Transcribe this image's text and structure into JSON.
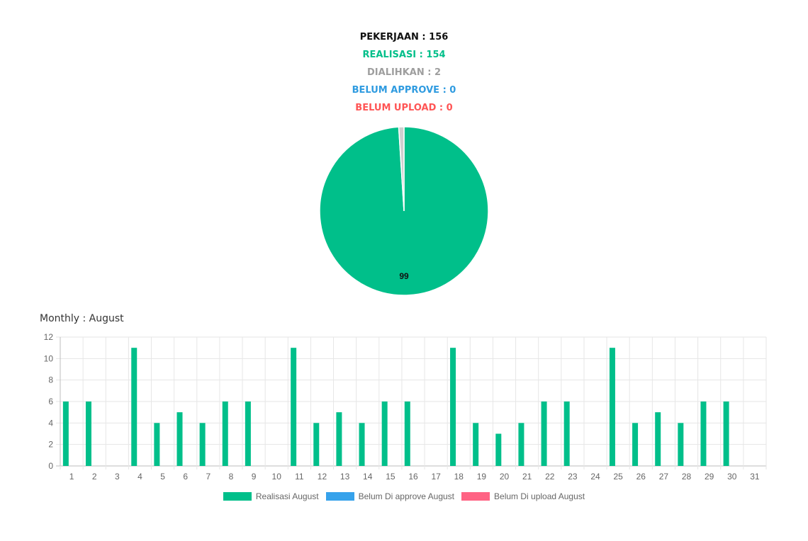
{
  "summary": {
    "total": "PEKERJAAN : 156",
    "realisasi": "REALISASI : 154",
    "dialihkan": "DIALIHKAN : 2",
    "belum_approve": "BELUM APPROVE : 0",
    "belum_upload": "BELUM UPLOAD : 0"
  },
  "monthly_title": "Monthly : August",
  "legend": [
    {
      "label": "Realisasi August",
      "color": "#00bf8a"
    },
    {
      "label": "Belum Di approve August",
      "color": "#36a2eb"
    },
    {
      "label": "Belum Di upload August",
      "color": "#ff6384"
    }
  ],
  "chart_data": [
    {
      "type": "pie",
      "slices": [
        {
          "value": 99,
          "label": "99",
          "color": "#00bf8a"
        },
        {
          "value": 1,
          "color": "#cfcfcf"
        }
      ]
    },
    {
      "type": "bar",
      "categories": [
        "1",
        "2",
        "3",
        "4",
        "5",
        "6",
        "7",
        "8",
        "9",
        "10",
        "11",
        "12",
        "13",
        "14",
        "15",
        "16",
        "17",
        "18",
        "19",
        "20",
        "21",
        "22",
        "23",
        "24",
        "25",
        "26",
        "27",
        "28",
        "29",
        "30",
        "31"
      ],
      "series": [
        {
          "name": "Realisasi August",
          "color": "#00bf8a",
          "values": [
            6,
            6,
            0,
            11,
            4,
            5,
            4,
            6,
            6,
            0,
            11,
            4,
            5,
            4,
            6,
            6,
            0,
            11,
            4,
            3,
            4,
            6,
            6,
            0,
            11,
            4,
            5,
            4,
            6,
            6,
            0
          ]
        },
        {
          "name": "Belum Di approve August",
          "color": "#36a2eb",
          "values": [
            0,
            0,
            0,
            0,
            0,
            0,
            0,
            0,
            0,
            0,
            0,
            0,
            0,
            0,
            0,
            0,
            0,
            0,
            0,
            0,
            0,
            0,
            0,
            0,
            0,
            0,
            0,
            0,
            0,
            0,
            0
          ]
        },
        {
          "name": "Belum Di upload August",
          "color": "#ff6384",
          "values": [
            0,
            0,
            0,
            0,
            0,
            0,
            0,
            0,
            0,
            0,
            0,
            0,
            0,
            0,
            0,
            0,
            0,
            0,
            0,
            0,
            0,
            0,
            0,
            0,
            0,
            0,
            0,
            0,
            0,
            0,
            0
          ]
        }
      ],
      "y_ticks": [
        "0",
        "2",
        "4",
        "6",
        "8",
        "10",
        "12"
      ],
      "ylim": [
        0,
        12
      ],
      "grid": true,
      "legend_position": "bottom"
    }
  ]
}
